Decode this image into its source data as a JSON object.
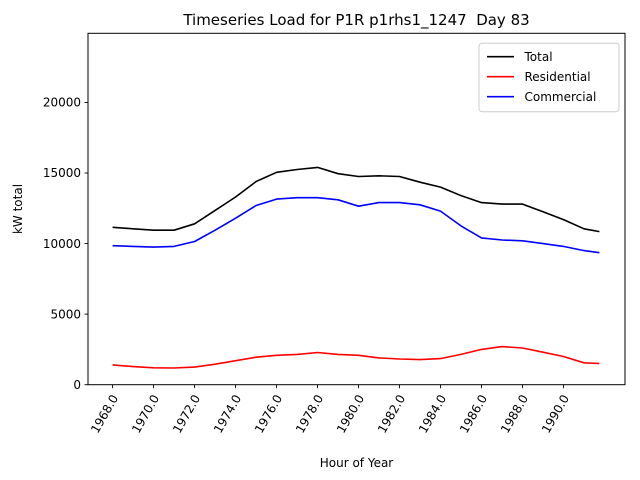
{
  "title": "Timeseries Load for P1R p1rhs1_1247  Day 83",
  "xlabel": "Hour of Year",
  "ylabel": "kW total",
  "colors": {
    "total": "#000000",
    "residential": "#ff0000",
    "commercial": "#0000ff",
    "legend_border": "#cccccc",
    "spine": "#000000"
  },
  "chart_data": {
    "type": "line",
    "title": "Timeseries Load for P1R p1rhs1_1247  Day 83",
    "xlabel": "Hour of Year",
    "ylabel": "kW total",
    "grid": false,
    "legend_position": "upper right",
    "xlim": [
      1966.8,
      1993.0
    ],
    "ylim": [
      0,
      24900
    ],
    "xticks": {
      "values": [
        1968,
        1970,
        1972,
        1974,
        1976,
        1978,
        1980,
        1982,
        1984,
        1986,
        1988,
        1990
      ],
      "labels": [
        "1968.0",
        "1970.0",
        "1972.0",
        "1974.0",
        "1976.0",
        "1978.0",
        "1980.0",
        "1982.0",
        "1984.0",
        "1986.0",
        "1988.0",
        "1990.0"
      ],
      "rotation_deg": 60
    },
    "yticks": {
      "values": [
        0,
        5000,
        10000,
        15000,
        20000
      ],
      "labels": [
        "0",
        "5000",
        "10000",
        "15000",
        "20000"
      ]
    },
    "x": [
      1968,
      1969,
      1970,
      1971,
      1972,
      1973,
      1974,
      1975,
      1976,
      1977,
      1978,
      1979,
      1980,
      1981,
      1982,
      1983,
      1984,
      1985,
      1986,
      1987,
      1988,
      1989,
      1990,
      1991,
      1991.75
    ],
    "series": [
      {
        "name": "Total",
        "color": "#000000",
        "values": [
          11150,
          11050,
          10950,
          10950,
          11400,
          12350,
          13300,
          14400,
          15050,
          15250,
          15400,
          14950,
          14750,
          14800,
          14750,
          14350,
          14000,
          13400,
          12900,
          12800,
          12800,
          12250,
          11700,
          11050,
          10850
        ]
      },
      {
        "name": "Residential",
        "color": "#ff0000",
        "values": [
          1400,
          1280,
          1200,
          1180,
          1250,
          1450,
          1700,
          1950,
          2080,
          2150,
          2280,
          2150,
          2080,
          1900,
          1820,
          1780,
          1850,
          2150,
          2500,
          2700,
          2600,
          2300,
          2000,
          1550,
          1500
        ]
      },
      {
        "name": "Commercial",
        "color": "#0000ff",
        "values": [
          9850,
          9800,
          9750,
          9800,
          10150,
          10950,
          11800,
          12700,
          13150,
          13250,
          13250,
          13100,
          12650,
          12900,
          12900,
          12750,
          12300,
          11250,
          10400,
          10250,
          10200,
          10000,
          9800,
          9500,
          9350
        ]
      }
    ]
  }
}
